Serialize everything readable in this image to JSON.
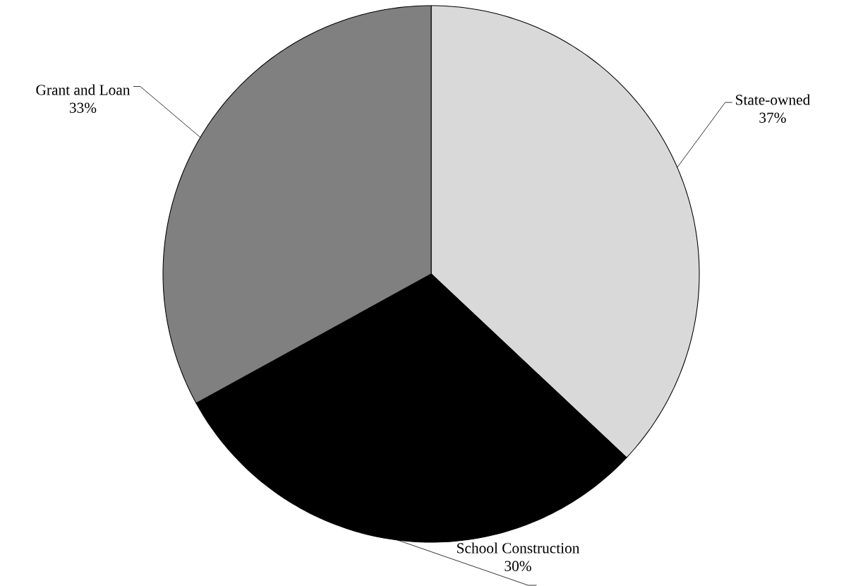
{
  "chart_data": {
    "type": "pie",
    "categories": [
      "State-owned",
      "School Construction",
      "Grant and Loan"
    ],
    "values": [
      37,
      30,
      33
    ],
    "value_labels": [
      "37%",
      "30%",
      "33%"
    ],
    "colors": [
      "#d9d9d9",
      "#000000",
      "#808080"
    ]
  }
}
